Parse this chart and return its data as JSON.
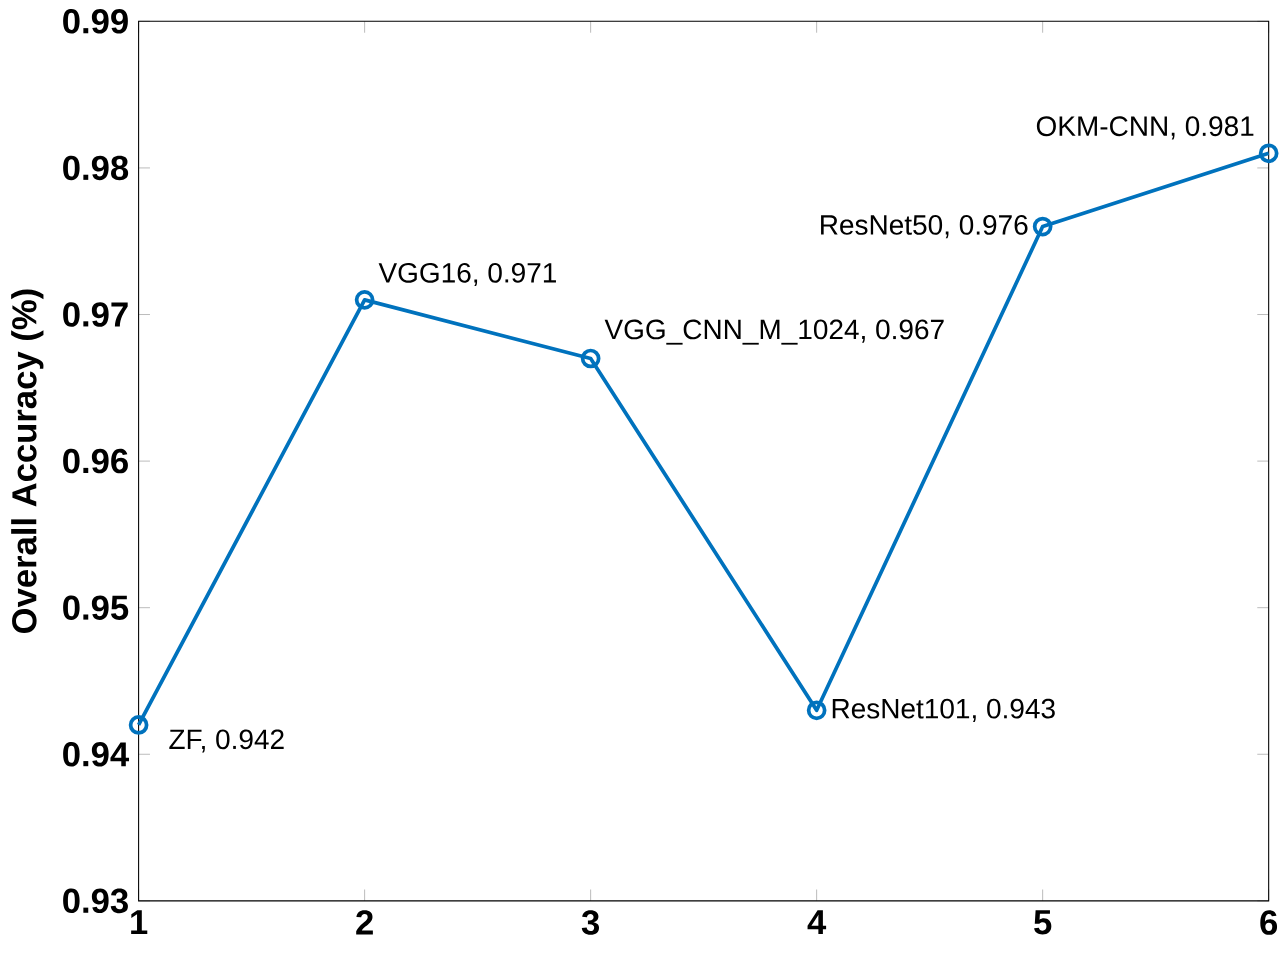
{
  "chart_data": {
    "type": "line",
    "ylabel": "Overall Accuracy (%)",
    "x": [
      1,
      2,
      3,
      4,
      5,
      6
    ],
    "series": [
      {
        "color": "#0072bd",
        "values": [
          0.942,
          0.971,
          0.967,
          0.943,
          0.976,
          0.981
        ]
      }
    ],
    "xlim": [
      1,
      6
    ],
    "xticks": [
      1,
      2,
      3,
      4,
      5,
      6
    ],
    "ylim": [
      0.93,
      0.99
    ],
    "yticks": [
      0.93,
      0.94,
      0.95,
      0.96,
      0.97,
      0.98,
      0.99
    ],
    "marker": "circle",
    "line_style": "solid",
    "annotations": [
      {
        "text": "ZF, 0.942",
        "x": 1,
        "y": 0.942
      },
      {
        "text": "VGG16, 0.971",
        "x": 2,
        "y": 0.971
      },
      {
        "text": "VGG_CNN_M_1024, 0.967",
        "x": 3,
        "y": 0.967
      },
      {
        "text": "ResNet101, 0.943",
        "x": 4,
        "y": 0.943
      },
      {
        "text": "ResNet50, 0.976",
        "x": 5,
        "y": 0.976
      },
      {
        "text": "OKM-CNN, 0.981",
        "x": 6,
        "y": 0.981
      }
    ]
  }
}
